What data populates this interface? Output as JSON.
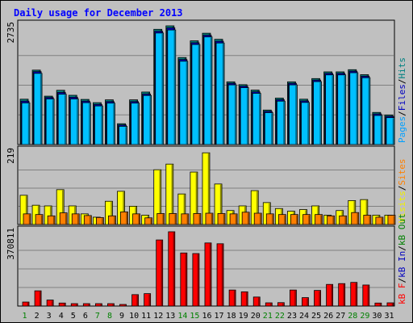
{
  "chart_data": {
    "type": "bar",
    "title": "Daily usage for December 2013",
    "categories": [
      "1",
      "2",
      "3",
      "4",
      "5",
      "6",
      "7",
      "8",
      "9",
      "10",
      "11",
      "12",
      "13",
      "14",
      "15",
      "16",
      "17",
      "18",
      "19",
      "20",
      "21",
      "22",
      "23",
      "24",
      "25",
      "26",
      "27",
      "28",
      "29",
      "30",
      "31"
    ],
    "weekend_days": [
      "1",
      "7",
      "8",
      "14",
      "15",
      "21",
      "22",
      "28",
      "29"
    ],
    "panels": [
      {
        "id": "hits-files-pages",
        "max_label": "2735",
        "ymax": 2735,
        "legend": [
          {
            "text": "Pages",
            "color": "#00a0ff"
          },
          {
            "text": "/",
            "color": "#000000"
          },
          {
            "text": "Files",
            "color": "#0000c0"
          },
          {
            "text": "/",
            "color": "#000000"
          },
          {
            "text": "Hits",
            "color": "#008080"
          }
        ],
        "series": [
          {
            "name": "Hits",
            "color": "#008080",
            "values": [
              1045,
              1715,
              1115,
              1250,
              1135,
              1040,
              965,
              1030,
              480,
              1030,
              1210,
              2655,
              2735,
              2005,
              2390,
              2565,
              2425,
              1445,
              1380,
              1255,
              795,
              1070,
              1445,
              1045,
              1520,
              1675,
              1675,
              1725,
              1610,
              740,
              680
            ]
          },
          {
            "name": "Files",
            "color": "#0000c0",
            "values": [
              1000,
              1680,
              1085,
              1200,
              1090,
              1000,
              925,
              990,
              450,
              990,
              1165,
              2610,
              2690,
              1960,
              2345,
              2520,
              2380,
              1410,
              1345,
              1215,
              765,
              1035,
              1410,
              1005,
              1485,
              1640,
              1640,
              1690,
              1575,
              705,
              650
            ]
          },
          {
            "name": "Pages",
            "color": "#00c0ff",
            "values": [
              960,
              1640,
              1050,
              1160,
              1050,
              965,
              890,
              955,
              420,
              955,
              1130,
              2570,
              2640,
              1920,
              2305,
              2480,
              2340,
              1375,
              1310,
              1180,
              735,
              1000,
              1375,
              970,
              1450,
              1605,
              1605,
              1655,
              1540,
              670,
              620
            ]
          }
        ]
      },
      {
        "id": "visits-sites",
        "max_label": "219",
        "ymax": 219,
        "legend": [
          {
            "text": "Visits",
            "color": "#f0f000"
          },
          {
            "text": "/",
            "color": "#000000"
          },
          {
            "text": "Sites",
            "color": "#ff8000"
          }
        ],
        "series": [
          {
            "name": "Visits",
            "color": "#ffff00",
            "values": [
              88,
              58,
              56,
              105,
              56,
              32,
              22,
              70,
              100,
              55,
              28,
              165,
              182,
              92,
              158,
              216,
              122,
              42,
              56,
              102,
              66,
              48,
              40,
              45,
              56,
              28,
              42,
              72,
              75,
              28,
              28
            ]
          },
          {
            "name": "Sites",
            "color": "#ff8000",
            "values": [
              32,
              30,
              26,
              35,
              32,
              27,
              21,
              26,
              38,
              32,
              20,
              33,
              33,
              32,
              33,
              34,
              33,
              32,
              37,
              34,
              32,
              30,
              30,
              30,
              30,
              26,
              26,
              36,
              28,
              22,
              28
            ]
          }
        ]
      },
      {
        "id": "kbytes",
        "max_label": "370811",
        "ymax": 370811,
        "legend": [
          {
            "text": "kB F",
            "color": "#ff0000"
          },
          {
            "text": "/",
            "color": "#000000"
          },
          {
            "text": "kB In",
            "color": "#0000c0"
          },
          {
            "text": "/",
            "color": "#000000"
          },
          {
            "text": "kB Out",
            "color": "#008000"
          }
        ],
        "series": [
          {
            "name": "kB F",
            "color": "#ff0000",
            "values": [
              20000,
              76000,
              30000,
              15000,
              12000,
              12000,
              12000,
              12000,
              8000,
              57000,
              62000,
              330000,
              370811,
              265000,
              262000,
              315000,
              311000,
              80000,
              71000,
              45000,
              16000,
              17000,
              80000,
              42000,
              78000,
              108000,
              112000,
              118000,
              105000,
              15000,
              16000
            ]
          }
        ]
      }
    ]
  }
}
